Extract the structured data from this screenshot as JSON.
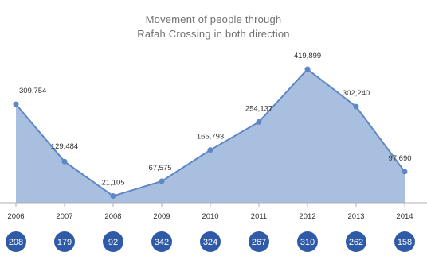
{
  "chart_data": {
    "type": "area",
    "title_lines": [
      "Movement of people through",
      "Rafah Crossing in both direction"
    ],
    "categories": [
      "2006",
      "2007",
      "2008",
      "2009",
      "2010",
      "2011",
      "2012",
      "2013",
      "2014"
    ],
    "values": [
      309754,
      129484,
      21105,
      67575,
      165793,
      254137,
      419899,
      302240,
      97690
    ],
    "value_labels": [
      "309,754",
      "129,484",
      "21,105",
      "67,575",
      "165,793",
      "254,137",
      "419,899",
      "302,240",
      "97,690"
    ],
    "circle_values": [
      "208",
      "179",
      "92",
      "342",
      "324",
      "267",
      "310",
      "262",
      "158"
    ],
    "ylim": [
      0,
      450000
    ],
    "grid": false,
    "colors": {
      "area_fill": "#a9bfe0",
      "line": "#5f87c4",
      "point": "#5f87c4",
      "circle": "#2f5aa8",
      "circle_text": "#ffffff",
      "axis": "#b0b0b0"
    }
  }
}
